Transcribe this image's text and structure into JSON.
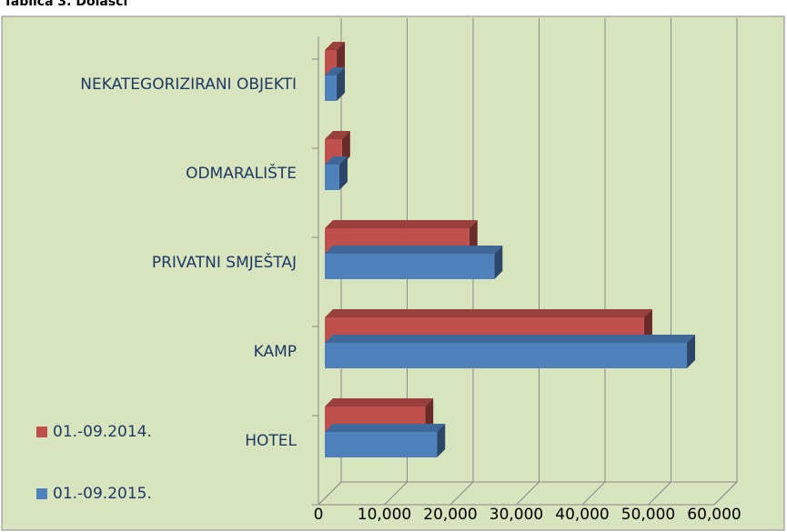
{
  "chart_data": {
    "type": "bar3d_horizontal",
    "title": "Tablica 3. Dolasci",
    "categories": [
      "HOTEL",
      "KAMP",
      "PRIVATNI SMJEŠTAJ",
      "ODMARALIŠTE",
      "NEKATEGORIZIRANI OBJEKTI"
    ],
    "series": [
      {
        "name": "01.-09.2014.",
        "color": "#c0504d",
        "values": [
          15200,
          48400,
          21900,
          2600,
          1800
        ]
      },
      {
        "name": "01.-09.2015.",
        "color": "#4f81bd",
        "values": [
          17000,
          54900,
          25700,
          2200,
          1800
        ]
      }
    ],
    "xlim": [
      0,
      60000
    ],
    "xticks": [
      0,
      {
        "value": 10000,
        "label": "10,000"
      },
      {
        "value": 20000,
        "label": "20,000"
      },
      {
        "value": 30000,
        "label": "30,000"
      },
      {
        "value": 40000,
        "label": "40,000"
      },
      {
        "value": 50000,
        "label": "50,000"
      },
      {
        "value": 60000,
        "label": "60,000"
      }
    ],
    "grid": true,
    "legend": "bottom-left"
  }
}
